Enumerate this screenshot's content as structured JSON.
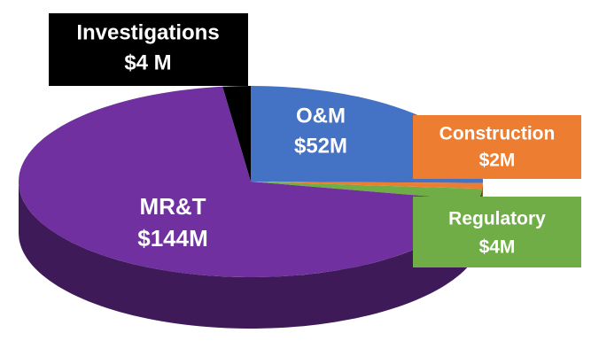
{
  "chart_data": {
    "type": "pie",
    "categories": [
      "Investigations",
      "O&M",
      "Construction",
      "Regulatory",
      "MR&T"
    ],
    "values": [
      4,
      52,
      2,
      4,
      144
    ],
    "value_labels": [
      "$4 M",
      "$52M",
      "$2M",
      "$4M",
      "$144M"
    ],
    "colors": [
      "#000000",
      "#4472c4",
      "#ed7d31",
      "#70ad47",
      "#7030a0"
    ]
  }
}
